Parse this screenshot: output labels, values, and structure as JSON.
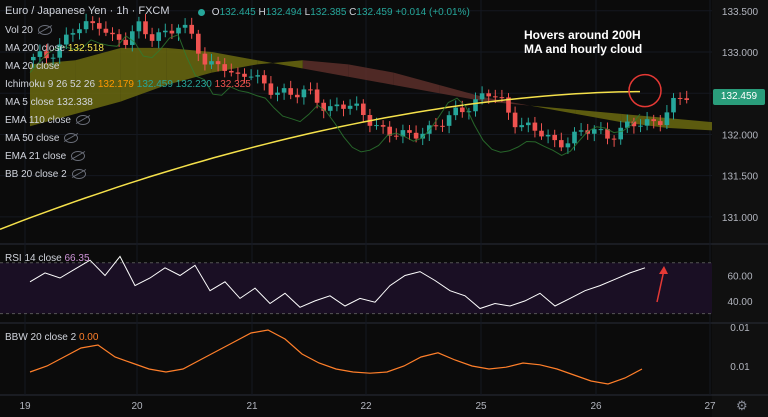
{
  "header": {
    "symbol": "Euro / Japanese Yen",
    "interval": "1h",
    "exchange": "FXCM",
    "ohlc": {
      "o_label": "O",
      "o": "132.445",
      "h_label": "H",
      "h": "132.494",
      "l_label": "L",
      "l": "132.385",
      "c_label": "C",
      "c": "132.459",
      "change": "+0.014 (+0.01%)"
    }
  },
  "legend": {
    "vol": "Vol 20",
    "ma200": {
      "label": "MA 200 close",
      "value": "132.518"
    },
    "ma20": "MA 20 close",
    "ichimoku": {
      "label": "Ichimoku 9 26 52 26",
      "v1": "132.179",
      "v2": "132.459",
      "v3": "132.230",
      "v4": "132.325"
    },
    "ma5": {
      "label": "MA 5 close",
      "value": "132.338"
    },
    "ema110": "EMA 110 close",
    "ma50": "MA 50 close",
    "ema21": "EMA 21 close",
    "bb20": "BB 20 close 2",
    "rsi": {
      "label": "RSI 14 close",
      "value": "66.35"
    },
    "bbw": {
      "label": "BBW 20 close 2",
      "value": "0.00"
    }
  },
  "annotation": {
    "line1": "Hovers around 200H",
    "line2": "MA and hourly cloud"
  },
  "price_tag": "132.459",
  "colors": {
    "bg": "#0b0b0b",
    "up": "#26a69a",
    "down": "#ef5350",
    "ma200": "#f5e14b",
    "rsi": "#ffffff",
    "bbw": "#ff7f2a",
    "cloud_bull": "#6b6a10",
    "cloud_bear": "#5c2f2a",
    "annotation_circle": "#e53935"
  },
  "icons": {
    "settings": "gear-icon",
    "visibility": "eye-icon"
  },
  "chart_data": [
    {
      "type": "candlestick",
      "title": "Euro / Japanese Yen · 1h · FXCM",
      "x_ticks": [
        "19",
        "20",
        "21",
        "22",
        "25",
        "26",
        "27"
      ],
      "y_ticks": [
        "133.500",
        "133.000",
        "132.500",
        "132.000",
        "131.500",
        "131.000"
      ],
      "ylim": [
        130.72,
        133.57
      ],
      "close_path": [
        132.9,
        132.95,
        133.1,
        133.25,
        133.3,
        133.38,
        133.15,
        133.1,
        133.35,
        133.2,
        133.2,
        133.3,
        133.25,
        132.78,
        132.85,
        132.7,
        132.8,
        132.6,
        132.5,
        132.55,
        132.5,
        132.45,
        132.3,
        132.4,
        132.3,
        132.2,
        132.1,
        132.0,
        131.95,
        132.05,
        132.1,
        132.15,
        132.3,
        132.4,
        132.5,
        132.4,
        132.2,
        132.1,
        132.0,
        131.9,
        131.95,
        132.0,
        132.05,
        132.0,
        132.05,
        132.1,
        132.15,
        132.2,
        132.35,
        132.46
      ],
      "ma200": {
        "start": 130.85,
        "end": 132.52
      },
      "cloud": {
        "top": [
          132.85,
          132.9,
          133.05,
          133.05,
          133.0,
          132.9,
          132.8,
          132.7,
          132.6,
          132.5,
          132.4,
          132.35,
          132.3,
          132.25,
          132.2,
          132.15
        ],
        "bottom": [
          132.1,
          132.25,
          132.4,
          132.6,
          132.75,
          132.85,
          132.9,
          132.85,
          132.75,
          132.6,
          132.45,
          132.35,
          132.25,
          132.15,
          132.08,
          132.05
        ]
      },
      "current_price": 132.459
    },
    {
      "type": "line",
      "title": "RSI 14 close",
      "y_ticks": [
        "60.00",
        "40.00"
      ],
      "ylim": [
        25,
        80
      ],
      "series": [
        {
          "name": "RSI 14 close",
          "values": [
            55,
            62,
            58,
            65,
            72,
            60,
            75,
            52,
            58,
            66,
            60,
            68,
            48,
            55,
            42,
            50,
            38,
            46,
            35,
            40,
            44,
            36,
            42,
            39,
            52,
            60,
            63,
            56,
            48,
            44,
            34,
            38,
            36,
            40,
            46,
            36,
            42,
            48,
            52,
            57,
            62,
            66
          ]
        }
      ]
    },
    {
      "type": "line",
      "title": "BBW 20 close 2",
      "y_ticks": [
        "0.01",
        "0.01"
      ],
      "series": [
        {
          "name": "BBW 20 close 2",
          "values": [
            0.3,
            0.4,
            0.55,
            0.7,
            0.75,
            0.55,
            0.45,
            0.35,
            0.3,
            0.35,
            0.5,
            0.65,
            0.8,
            0.95,
            1.0,
            0.85,
            0.6,
            0.45,
            0.35,
            0.3,
            0.28,
            0.3,
            0.4,
            0.55,
            0.62,
            0.5,
            0.4,
            0.35,
            0.38,
            0.45,
            0.42,
            0.35,
            0.25,
            0.15,
            0.1,
            0.2,
            0.35
          ]
        }
      ]
    }
  ]
}
